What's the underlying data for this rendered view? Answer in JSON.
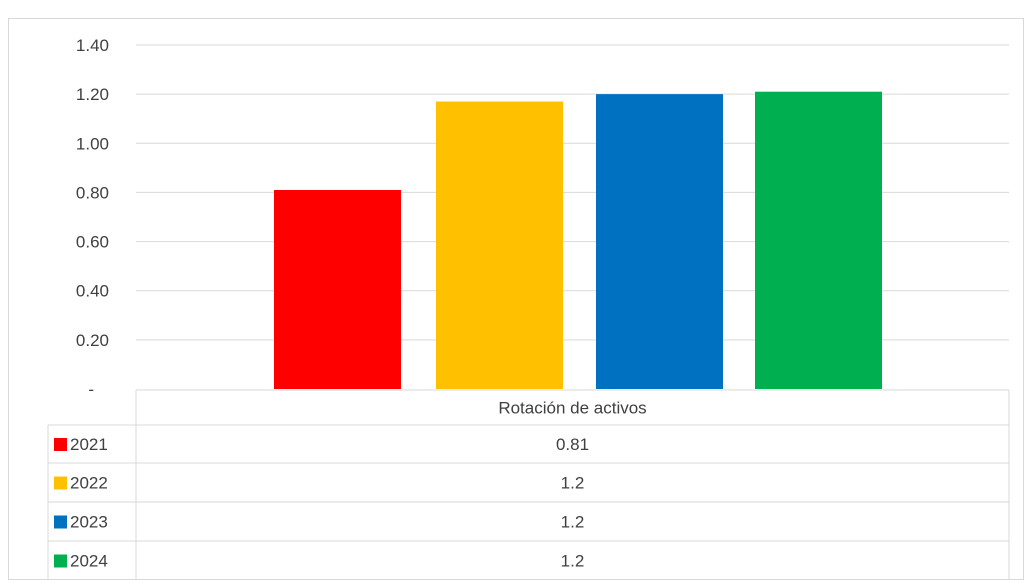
{
  "chart_data": {
    "type": "bar",
    "categories": [
      "Rotación de activos"
    ],
    "series": [
      {
        "name": "2021",
        "values": [
          0.81
        ],
        "color": "#ff0000",
        "label": "0.81"
      },
      {
        "name": "2022",
        "values": [
          1.17
        ],
        "color": "#ffc000",
        "label": "1.2"
      },
      {
        "name": "2023",
        "values": [
          1.2
        ],
        "color": "#0070c0",
        "label": "1.2"
      },
      {
        "name": "2024",
        "values": [
          1.21
        ],
        "color": "#00b050",
        "label": "1.2"
      }
    ],
    "y_ticks": [
      {
        "value": 0,
        "label": "-"
      },
      {
        "value": 0.2,
        "label": "0.20"
      },
      {
        "value": 0.4,
        "label": "0.40"
      },
      {
        "value": 0.6,
        "label": "0.60"
      },
      {
        "value": 0.8,
        "label": "0.80"
      },
      {
        "value": 1.0,
        "label": "1.00"
      },
      {
        "value": 1.2,
        "label": "1.20"
      },
      {
        "value": 1.4,
        "label": "1.40"
      }
    ],
    "ylim": [
      0,
      1.4
    ],
    "grid": true,
    "legend": "data-table"
  }
}
